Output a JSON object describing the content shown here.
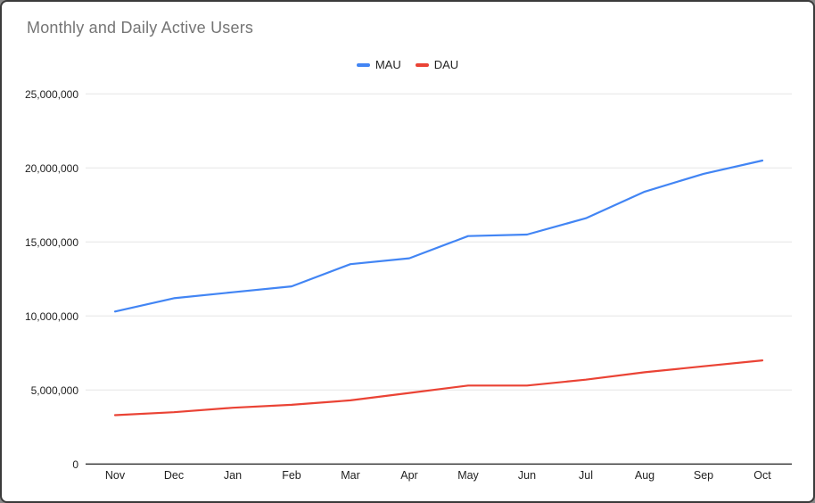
{
  "colors": {
    "grid": "#e6e6e6",
    "axis": "#333333",
    "title_text": "#757575",
    "tick_text": "#1f1f1f",
    "mau_blue": "#4285f4",
    "dau_red": "#ea4335"
  },
  "chart_data": {
    "type": "line",
    "title": "Monthly and Daily Active Users",
    "categories": [
      "Nov",
      "Dec",
      "Jan",
      "Feb",
      "Mar",
      "Apr",
      "May",
      "Jun",
      "Jul",
      "Aug",
      "Sep",
      "Oct"
    ],
    "series": [
      {
        "name": "MAU",
        "color": "#4285f4",
        "values": [
          10300000,
          11200000,
          11600000,
          12000000,
          13500000,
          13900000,
          15400000,
          15500000,
          16600000,
          18400000,
          19600000,
          20500000
        ]
      },
      {
        "name": "DAU",
        "color": "#ea4335",
        "values": [
          3300000,
          3500000,
          3800000,
          4000000,
          4300000,
          4800000,
          5300000,
          5300000,
          5700000,
          6200000,
          6600000,
          7000000
        ]
      }
    ],
    "xlabel": "",
    "ylabel": "",
    "ylim": [
      0,
      25000000
    ],
    "ytick_step": 5000000,
    "ytick_labels": [
      "0",
      "5,000,000",
      "10,000,000",
      "15,000,000",
      "20,000,000",
      "25,000,000"
    ],
    "grid": true,
    "legend_position": "top-center"
  }
}
